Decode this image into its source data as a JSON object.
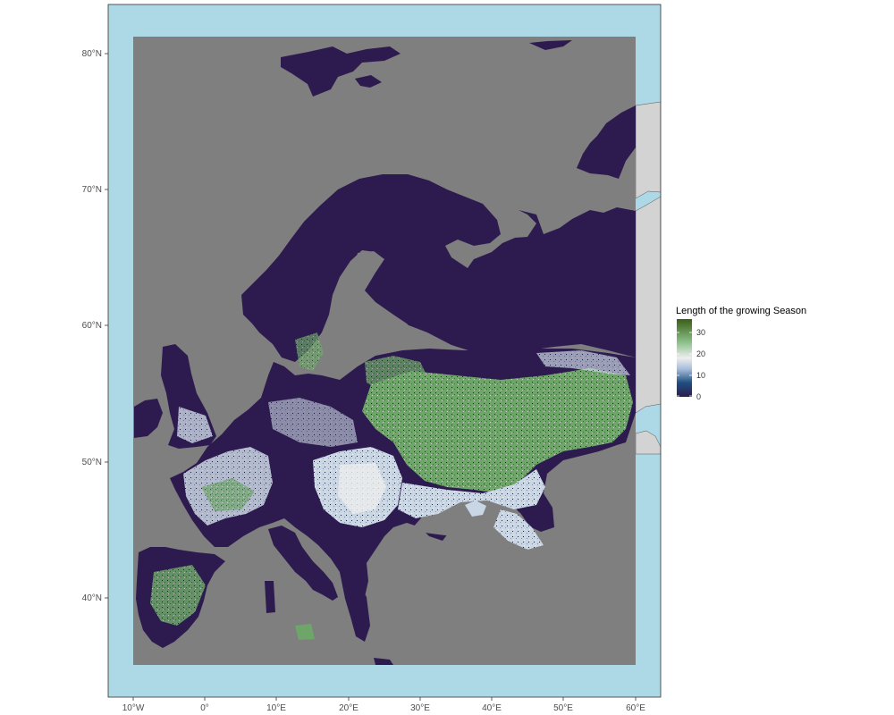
{
  "colors": {
    "ocean": "#add8e6",
    "land_outside": "#d3d3d3",
    "na_cells": "#7f7f7f",
    "zero": "#2d1b4f",
    "low": "#1f4f7f",
    "mid": "#eeeeee",
    "high": "#6ea66a",
    "top": "#3b5e16",
    "frame": "#333333"
  },
  "axes": {
    "x_ticks": [
      "10°W",
      "0°",
      "10°E",
      "20°E",
      "30°E",
      "40°E",
      "50°E",
      "60°E"
    ],
    "y_ticks": [
      "80°N",
      "70°N",
      "60°N",
      "50°N",
      "40°N"
    ]
  },
  "legend": {
    "title": "Length of the growing Season",
    "labels": [
      "30",
      "20",
      "10",
      "0"
    ]
  },
  "chart_data": {
    "type": "heatmap",
    "title": "",
    "xlabel": "",
    "ylabel": "",
    "legend_title": "Length of the growing Season",
    "x_range_deg": [
      -13.5,
      63.5
    ],
    "y_range_deg": [
      33,
      85
    ],
    "raster_extent": {
      "lon": [
        -10,
        60
      ],
      "lat": [
        35,
        81
      ]
    },
    "value_range": [
      0,
      35
    ],
    "legend_ticks": [
      0,
      10,
      20,
      30
    ],
    "legend_position": "right",
    "grid": false
  }
}
